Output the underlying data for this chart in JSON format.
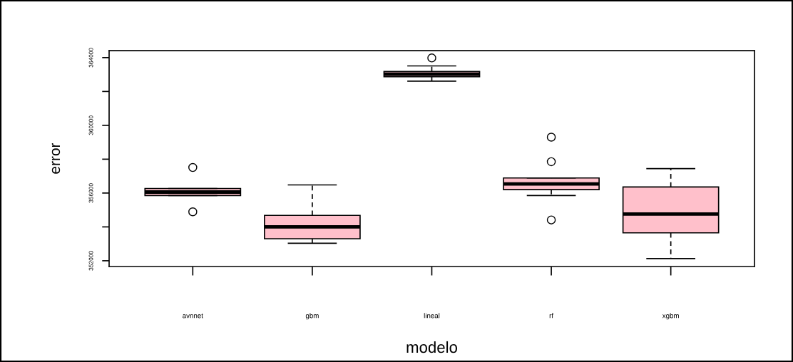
{
  "chart_data": {
    "type": "box",
    "xlabel": "modelo",
    "ylabel": "error",
    "categories": [
      "avnnet",
      "gbm",
      "lineal",
      "rf",
      "xgbm"
    ],
    "color": "#ffc0cb",
    "marker": "circle",
    "grid": false,
    "legend": false,
    "ylim": [
      351660,
      364410
    ],
    "yticks": [
      352000,
      {
        "value": 354000,
        "label": null
      },
      356000,
      {
        "value": 358000,
        "label": null
      },
      360000,
      {
        "value": 362000,
        "label": null
      },
      364000
    ],
    "boxes": [
      {
        "low": 355850,
        "q1": 355850,
        "median": 356060,
        "q3": 356270,
        "high": 356270,
        "outliers": [
          357510,
          354890
        ]
      },
      {
        "low": 353030,
        "q1": 353300,
        "median": 354000,
        "q3": 354680,
        "high": 356480
      },
      {
        "low": 362610,
        "q1": 362870,
        "median": 363020,
        "q3": 363180,
        "high": 363510,
        "outliers": [
          363980
        ]
      },
      {
        "low": 355850,
        "q1": 356200,
        "median": 356540,
        "q3": 356890,
        "high": 356890,
        "outliers": [
          359300,
          357850,
          354410
        ]
      },
      {
        "low": 352130,
        "q1": 353650,
        "median": 354760,
        "q3": 356360,
        "high": 357440
      }
    ]
  }
}
